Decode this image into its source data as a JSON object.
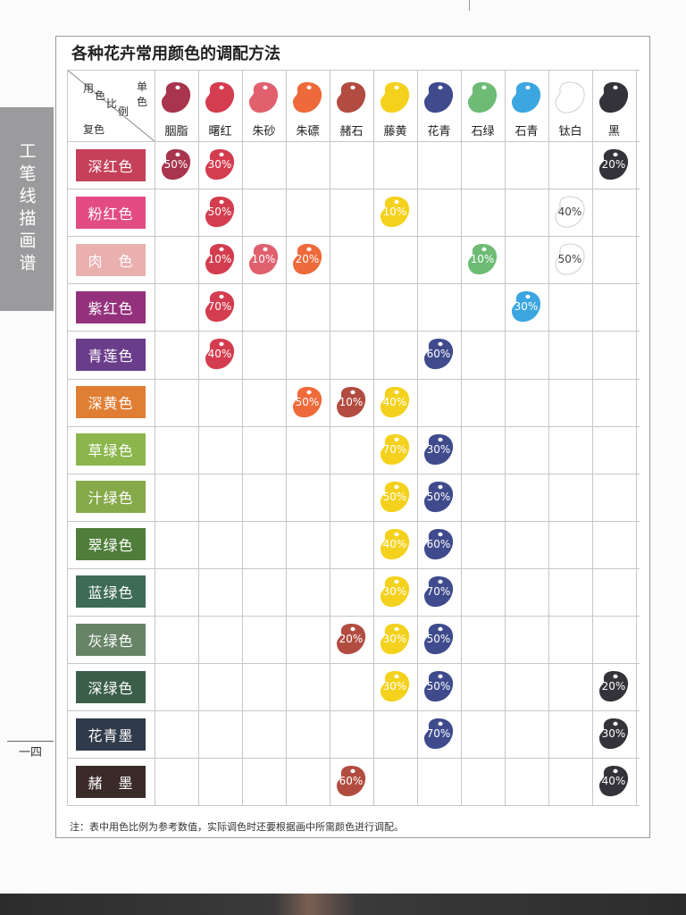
{
  "side_tab": "工笔线描画谱",
  "page_number": "一四",
  "title": "各种花卉常用颜色的调配方法",
  "corner": {
    "usage_ratio": [
      "用",
      "色",
      "比",
      "例"
    ],
    "single_color": [
      "单",
      "色"
    ],
    "compound_color": "复色"
  },
  "pigments": [
    {
      "name": "胭脂",
      "color": "#a8344e"
    },
    {
      "name": "曙红",
      "color": "#d43d4f"
    },
    {
      "name": "朱砂",
      "color": "#e0606e"
    },
    {
      "name": "朱磦",
      "color": "#ef6a3a"
    },
    {
      "name": "赭石",
      "color": "#b24c40"
    },
    {
      "name": "藤黄",
      "color": "#f4d11c"
    },
    {
      "name": "花青",
      "color": "#3f4b8c"
    },
    {
      "name": "石绿",
      "color": "#6dbb74"
    },
    {
      "name": "石青",
      "color": "#3ba6e0"
    },
    {
      "name": "钛白",
      "color": "#ffffff"
    },
    {
      "name": "黑",
      "color": "#343339"
    }
  ],
  "rows": [
    {
      "label": "深红色",
      "color": "#c54059",
      "cells": [
        [
          "胭脂",
          "50%"
        ],
        [
          "曙红",
          "30%"
        ],
        [
          "黑",
          "20%"
        ]
      ]
    },
    {
      "label": "粉红色",
      "color": "#e24c83",
      "cells": [
        [
          "曙红",
          "50%"
        ],
        [
          "藤黄",
          "10%"
        ],
        [
          "钛白",
          "40%"
        ]
      ]
    },
    {
      "label": "肉　色",
      "color": "#e9b0ae",
      "cells": [
        [
          "曙红",
          "10%"
        ],
        [
          "朱砂",
          "10%"
        ],
        [
          "朱磦",
          "20%"
        ],
        [
          "石绿",
          "10%"
        ],
        [
          "钛白",
          "50%"
        ]
      ]
    },
    {
      "label": "紫红色",
      "color": "#94317c",
      "cells": [
        [
          "曙红",
          "70%"
        ],
        [
          "石青",
          "30%"
        ]
      ]
    },
    {
      "label": "青莲色",
      "color": "#6a3d8b",
      "cells": [
        [
          "曙红",
          "40%"
        ],
        [
          "花青",
          "60%"
        ]
      ]
    },
    {
      "label": "深黄色",
      "color": "#e07e34",
      "cells": [
        [
          "朱磦",
          "50%"
        ],
        [
          "赭石",
          "10%"
        ],
        [
          "藤黄",
          "40%"
        ]
      ]
    },
    {
      "label": "草绿色",
      "color": "#8ab64b",
      "cells": [
        [
          "藤黄",
          "70%"
        ],
        [
          "花青",
          "30%"
        ]
      ]
    },
    {
      "label": "汁绿色",
      "color": "#86a94a",
      "cells": [
        [
          "藤黄",
          "50%"
        ],
        [
          "花青",
          "50%"
        ]
      ]
    },
    {
      "label": "翠绿色",
      "color": "#4f7d3a",
      "cells": [
        [
          "藤黄",
          "40%"
        ],
        [
          "花青",
          "60%"
        ]
      ]
    },
    {
      "label": "蓝绿色",
      "color": "#3e6b56",
      "cells": [
        [
          "藤黄",
          "30%"
        ],
        [
          "花青",
          "70%"
        ]
      ]
    },
    {
      "label": "灰绿色",
      "color": "#678466",
      "cells": [
        [
          "赭石",
          "20%"
        ],
        [
          "藤黄",
          "30%"
        ],
        [
          "花青",
          "50%"
        ]
      ]
    },
    {
      "label": "深绿色",
      "color": "#3b5e48",
      "cells": [
        [
          "藤黄",
          "30%"
        ],
        [
          "花青",
          "50%"
        ],
        [
          "黑",
          "20%"
        ]
      ]
    },
    {
      "label": "花青墨",
      "color": "#2f3a4a",
      "cells": [
        [
          "花青",
          "70%"
        ],
        [
          "黑",
          "30%"
        ]
      ]
    },
    {
      "label": "赭　墨",
      "color": "#3a2b29",
      "cells": [
        [
          "赭石",
          "60%"
        ],
        [
          "黑",
          "40%"
        ]
      ]
    }
  ],
  "note": "注：表中用色比例为参考数值，实际调色时还要根据画中所需颜色进行调配。"
}
